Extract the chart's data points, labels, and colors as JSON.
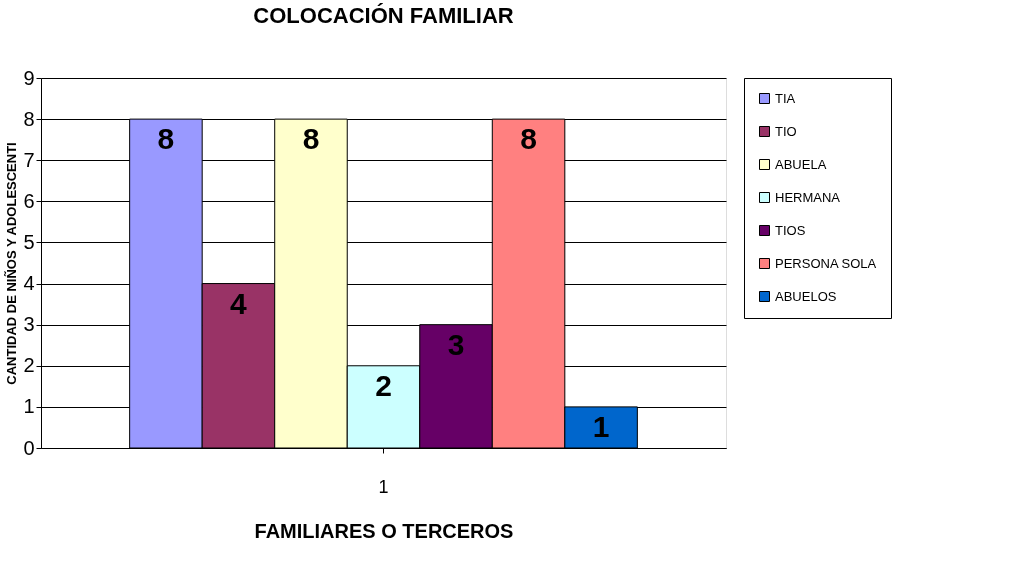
{
  "chart_data": {
    "type": "bar",
    "title": "COLOCACIÓN FAMILIAR",
    "xlabel": "FAMILIARES O TERCEROS",
    "ylabel": "CANTIDAD DE NIÑOS Y ADOLESCENTI",
    "categories": [
      "1"
    ],
    "series": [
      {
        "name": "TIA",
        "color": "#9999ff",
        "values": [
          8
        ]
      },
      {
        "name": "TIO",
        "color": "#993366",
        "values": [
          4
        ]
      },
      {
        "name": "ABUELA",
        "color": "#ffffcc",
        "values": [
          8
        ]
      },
      {
        "name": "HERMANA",
        "color": "#ccffff",
        "values": [
          2
        ]
      },
      {
        "name": "TIOS",
        "color": "#660066",
        "values": [
          3
        ]
      },
      {
        "name": "PERSONA SOLA",
        "color": "#ff8080",
        "values": [
          8
        ]
      },
      {
        "name": "ABUELOS",
        "color": "#0066cc",
        "values": [
          1
        ]
      }
    ],
    "ylim": [
      0,
      9
    ],
    "yticks": [
      0,
      1,
      2,
      3,
      4,
      5,
      6,
      7,
      8,
      9
    ],
    "grid": "y",
    "legend": "right",
    "data_labels": true
  }
}
